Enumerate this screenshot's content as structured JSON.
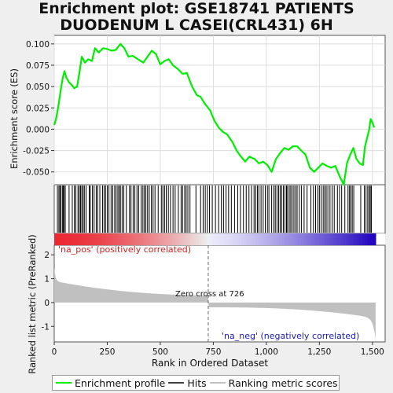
{
  "title_line1": "Enrichment plot: GSE18741 PATIENTS",
  "title_line2": "DUODENUM L CASEI(CRL431) 6H",
  "labels": {
    "es_ylabel": "Enrichment score (ES)",
    "rank_ylabel": "Ranked list metric (PreRanked)",
    "xlabel": "Rank in Ordered Dataset",
    "na_pos": "'na_pos' (positively correlated)",
    "na_neg": "'na_neg' (negatively correlated)",
    "zero_cross": "Zero cross at 726"
  },
  "legend": {
    "enrichment": "Enrichment profile",
    "hits": "Hits",
    "ranking": "Ranking metric scores"
  },
  "colors": {
    "enrichment": "#00ee00",
    "hits": "#000000",
    "ranking": "#c0c0c0",
    "pos_label": "#cc2222",
    "neg_label": "#1a1aaa"
  },
  "chart_data": {
    "type": "line",
    "xlim": [
      0,
      1560
    ],
    "es_ylim": [
      -0.065,
      0.11
    ],
    "es_yticks": [
      -0.05,
      -0.025,
      0.0,
      0.025,
      0.05,
      0.075,
      0.1
    ],
    "es_ytick_labels": [
      "-0.050",
      "-0.025",
      "0.000",
      "0.025",
      "0.050",
      "0.075",
      "0.100"
    ],
    "xticks": [
      0,
      250,
      500,
      750,
      1000,
      1250,
      1500
    ],
    "xtick_labels": [
      "0",
      "250",
      "500",
      "750",
      "1,000",
      "1,250",
      "1,500"
    ],
    "metric_ylim": [
      -1.65,
      2.4
    ],
    "metric_yticks": [
      -1,
      0,
      1,
      2
    ],
    "zero_cross": 726,
    "n_genes": 1515,
    "enrichment_profile": [
      [
        0,
        0.005
      ],
      [
        8,
        0.012
      ],
      [
        18,
        0.025
      ],
      [
        30,
        0.045
      ],
      [
        40,
        0.06
      ],
      [
        48,
        0.068
      ],
      [
        58,
        0.06
      ],
      [
        70,
        0.055
      ],
      [
        82,
        0.052
      ],
      [
        95,
        0.048
      ],
      [
        108,
        0.05
      ],
      [
        118,
        0.065
      ],
      [
        130,
        0.085
      ],
      [
        145,
        0.078
      ],
      [
        160,
        0.082
      ],
      [
        178,
        0.08
      ],
      [
        192,
        0.095
      ],
      [
        210,
        0.09
      ],
      [
        230,
        0.095
      ],
      [
        250,
        0.094
      ],
      [
        270,
        0.092
      ],
      [
        290,
        0.093
      ],
      [
        312,
        0.1
      ],
      [
        330,
        0.095
      ],
      [
        350,
        0.085
      ],
      [
        370,
        0.086
      ],
      [
        395,
        0.082
      ],
      [
        420,
        0.078
      ],
      [
        440,
        0.085
      ],
      [
        460,
        0.092
      ],
      [
        480,
        0.088
      ],
      [
        500,
        0.076
      ],
      [
        520,
        0.08
      ],
      [
        540,
        0.082
      ],
      [
        560,
        0.075
      ],
      [
        585,
        0.07
      ],
      [
        605,
        0.065
      ],
      [
        625,
        0.066
      ],
      [
        650,
        0.05
      ],
      [
        672,
        0.04
      ],
      [
        690,
        0.038
      ],
      [
        710,
        0.03
      ],
      [
        735,
        0.022
      ],
      [
        755,
        0.01
      ],
      [
        775,
        0.002
      ],
      [
        795,
        -0.003
      ],
      [
        815,
        -0.006
      ],
      [
        840,
        -0.015
      ],
      [
        860,
        -0.025
      ],
      [
        880,
        -0.032
      ],
      [
        900,
        -0.038
      ],
      [
        920,
        -0.032
      ],
      [
        945,
        -0.035
      ],
      [
        965,
        -0.04
      ],
      [
        985,
        -0.038
      ],
      [
        1005,
        -0.042
      ],
      [
        1025,
        -0.05
      ],
      [
        1045,
        -0.035
      ],
      [
        1065,
        -0.028
      ],
      [
        1085,
        -0.022
      ],
      [
        1105,
        -0.024
      ],
      [
        1125,
        -0.02
      ],
      [
        1145,
        -0.02
      ],
      [
        1165,
        -0.025
      ],
      [
        1185,
        -0.03
      ],
      [
        1205,
        -0.045
      ],
      [
        1225,
        -0.05
      ],
      [
        1245,
        -0.045
      ],
      [
        1265,
        -0.04
      ],
      [
        1285,
        -0.043
      ],
      [
        1305,
        -0.045
      ],
      [
        1325,
        -0.043
      ],
      [
        1345,
        -0.055
      ],
      [
        1365,
        -0.065
      ],
      [
        1380,
        -0.04
      ],
      [
        1395,
        -0.03
      ],
      [
        1410,
        -0.022
      ],
      [
        1425,
        -0.035
      ],
      [
        1440,
        -0.04
      ],
      [
        1455,
        -0.042
      ],
      [
        1465,
        -0.02
      ],
      [
        1475,
        -0.01
      ],
      [
        1485,
        0.0
      ],
      [
        1492,
        0.012
      ],
      [
        1500,
        0.008
      ],
      [
        1508,
        0.002
      ]
    ],
    "hit_positions": [
      15,
      22,
      27,
      30,
      38,
      42,
      46,
      52,
      70,
      85,
      95,
      102,
      112,
      118,
      124,
      130,
      136,
      142,
      150,
      165,
      170,
      180,
      188,
      198,
      205,
      215,
      228,
      235,
      242,
      250,
      258,
      268,
      276,
      285,
      292,
      300,
      306,
      312,
      320,
      328,
      340,
      355,
      362,
      372,
      380,
      390,
      398,
      410,
      418,
      425,
      432,
      440,
      448,
      458,
      466,
      475,
      490,
      505,
      512,
      520,
      528,
      538,
      548,
      560,
      570,
      585,
      598,
      605,
      615,
      622,
      630,
      640,
      668,
      690,
      702,
      712,
      722,
      732,
      745,
      760,
      775,
      788,
      798,
      810,
      822,
      835,
      850,
      865,
      878,
      892,
      905,
      918,
      930,
      942,
      950,
      958,
      965,
      975,
      985,
      995,
      1005,
      1012,
      1025,
      1035,
      1042,
      1050,
      1058,
      1065,
      1072,
      1080,
      1088,
      1095,
      1100,
      1108,
      1115,
      1122,
      1130,
      1138,
      1145,
      1155,
      1165,
      1178,
      1192,
      1210,
      1222,
      1232,
      1242,
      1250,
      1258,
      1268,
      1275,
      1282,
      1290,
      1300,
      1310,
      1320,
      1335,
      1345,
      1355,
      1370,
      1385,
      1392,
      1398,
      1405,
      1412,
      1445,
      1462,
      1470,
      1478,
      1485,
      1490,
      1495
    ]
  }
}
